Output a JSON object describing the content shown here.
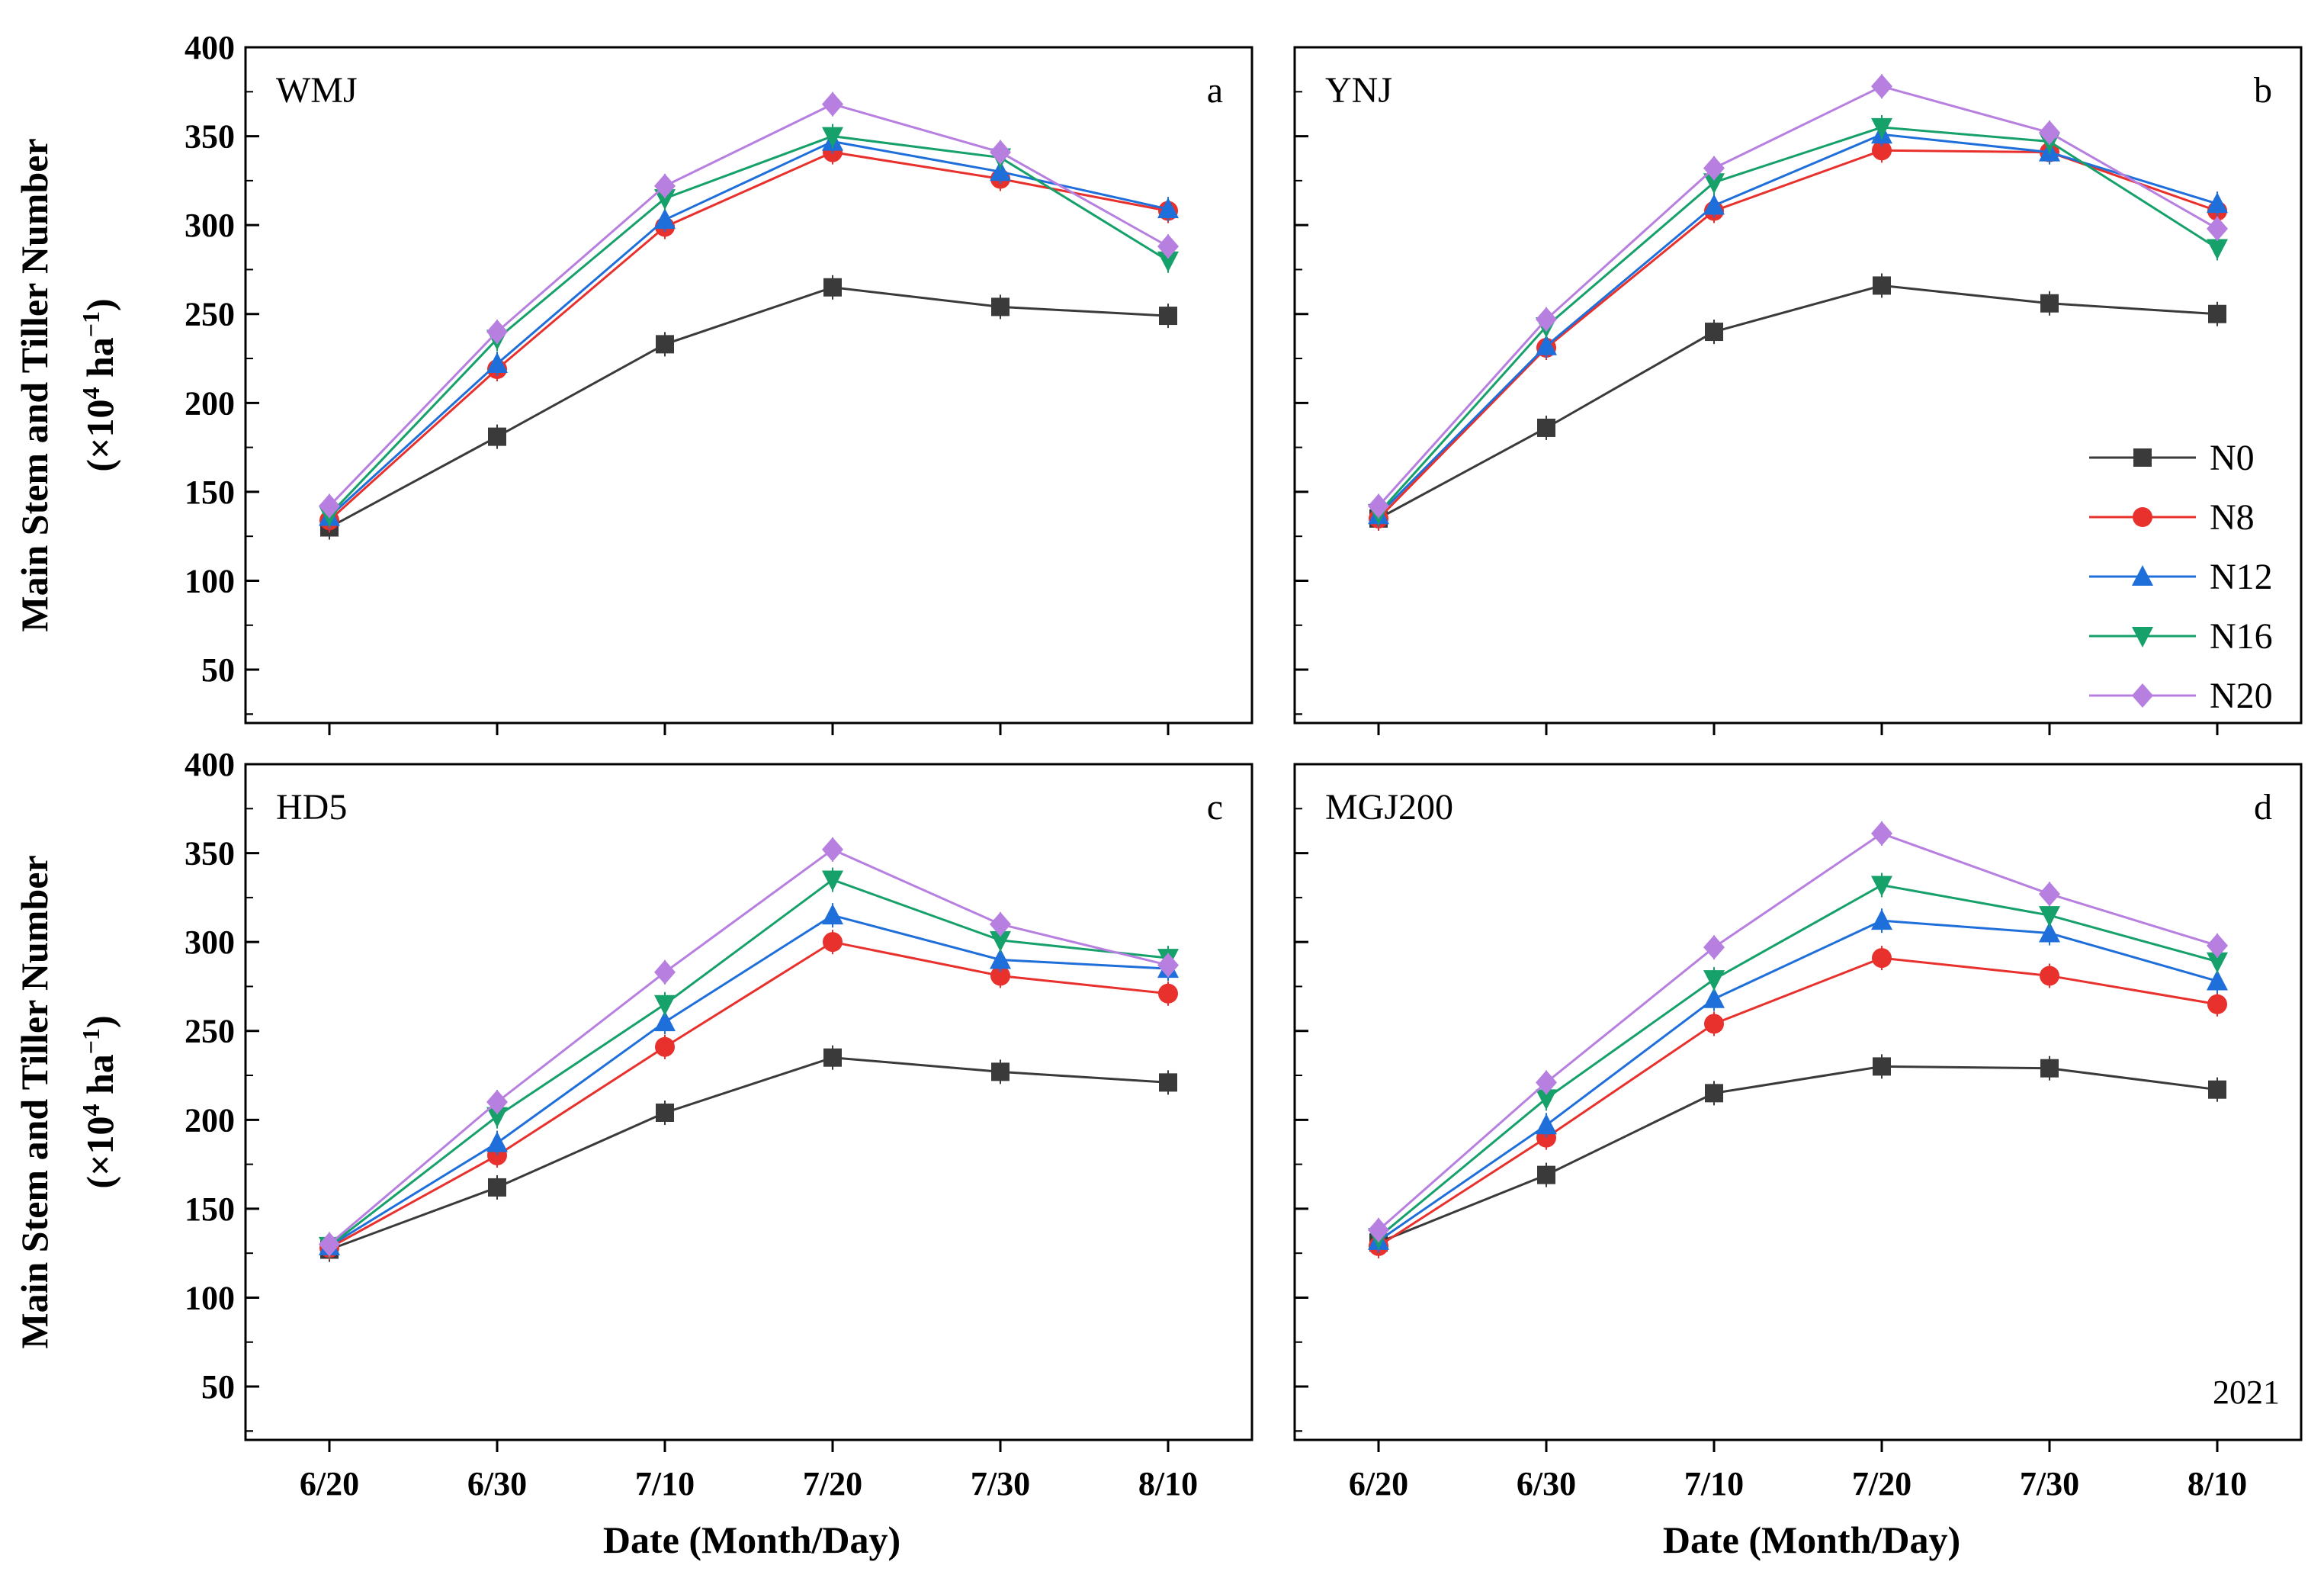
{
  "chart_data": {
    "type": "line",
    "categories": [
      "6/20",
      "6/30",
      "7/10",
      "7/20",
      "7/30",
      "8/10"
    ],
    "xlabel": "Date (Month/Day)",
    "ylabel_line1": "Main Stem and Tiller Number",
    "ylabel_line2_prefix": "(×10",
    "ylabel_line2_exp": "4",
    "ylabel_line2_mid": " ha",
    "ylabel_line2_exp2": "−1",
    "ylabel_line2_suffix": ")",
    "ylim": [
      20,
      400
    ],
    "yticks": [
      50,
      100,
      150,
      200,
      250,
      300,
      350,
      400
    ],
    "year": "2021",
    "legend_position": "right of panel b",
    "series_styles": [
      {
        "name": "N0",
        "color": "#3a3a3a",
        "marker": "square"
      },
      {
        "name": "N8",
        "color": "#e8302c",
        "marker": "circle"
      },
      {
        "name": "N12",
        "color": "#1f6fdb",
        "marker": "triangle-up"
      },
      {
        "name": "N16",
        "color": "#16a06a",
        "marker": "triangle-down"
      },
      {
        "name": "N20",
        "color": "#b77fe0",
        "marker": "diamond"
      }
    ],
    "panels": [
      {
        "id": "a",
        "name": "WMJ",
        "series": [
          {
            "name": "N0",
            "values": [
              130,
              181,
              233,
              265,
              254,
              249
            ]
          },
          {
            "name": "N8",
            "values": [
              134,
              219,
              299,
              341,
              326,
              308
            ]
          },
          {
            "name": "N12",
            "values": [
              136,
              222,
              303,
              347,
              330,
              309
            ]
          },
          {
            "name": "N16",
            "values": [
              137,
              236,
              315,
              350,
              338,
              280
            ]
          },
          {
            "name": "N20",
            "values": [
              142,
              240,
              322,
              368,
              341,
              288
            ]
          }
        ]
      },
      {
        "id": "b",
        "name": "YNJ",
        "series": [
          {
            "name": "N0",
            "values": [
              135,
              186,
              240,
              266,
              256,
              250
            ]
          },
          {
            "name": "N8",
            "values": [
              135,
              231,
              308,
              342,
              341,
              308
            ]
          },
          {
            "name": "N12",
            "values": [
              137,
              232,
              311,
              351,
              341,
              312
            ]
          },
          {
            "name": "N16",
            "values": [
              138,
              243,
              324,
              355,
              347,
              287
            ]
          },
          {
            "name": "N20",
            "values": [
              142,
              247,
              332,
              378,
              352,
              298
            ]
          }
        ]
      },
      {
        "id": "c",
        "name": "HD5",
        "series": [
          {
            "name": "N0",
            "values": [
              127,
              162,
              204,
              235,
              227,
              221
            ]
          },
          {
            "name": "N8",
            "values": [
              128,
              180,
              241,
              300,
              281,
              271
            ]
          },
          {
            "name": "N12",
            "values": [
              129,
              187,
              255,
              315,
              290,
              285
            ]
          },
          {
            "name": "N16",
            "values": [
              129,
              202,
              265,
              335,
              301,
              291
            ]
          },
          {
            "name": "N20",
            "values": [
              130,
              210,
              283,
              352,
              310,
              287
            ]
          }
        ]
      },
      {
        "id": "d",
        "name": "MGJ200",
        "series": [
          {
            "name": "N0",
            "values": [
              131,
              169,
              215,
              230,
              229,
              217
            ]
          },
          {
            "name": "N8",
            "values": [
              129,
              190,
              254,
              291,
              281,
              265
            ]
          },
          {
            "name": "N12",
            "values": [
              132,
              197,
              268,
              312,
              305,
              278
            ]
          },
          {
            "name": "N16",
            "values": [
              134,
              212,
              279,
              332,
              315,
              289
            ]
          },
          {
            "name": "N20",
            "values": [
              138,
              221,
              297,
              361,
              327,
              298
            ]
          }
        ]
      }
    ]
  }
}
